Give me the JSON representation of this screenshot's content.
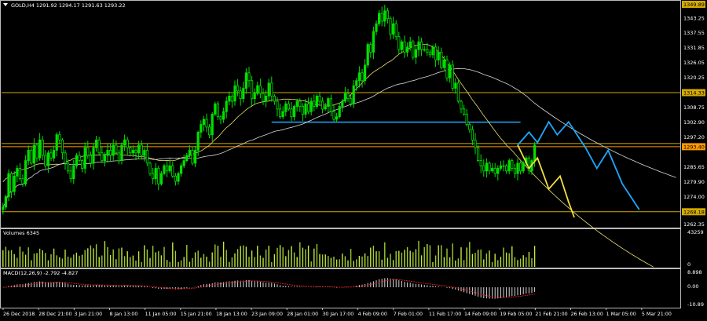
{
  "chart_data": {
    "type": "candlestick",
    "symbol_label": "GOLD,H4  1291.92 1294.17 1291.63 1293.22",
    "price_axis": {
      "ylim": [
        1262.35,
        1349.6
      ],
      "ticks": [
        "1349.89",
        "1343.25",
        "1337.55",
        "1331.85",
        "1326.05",
        "1320.25",
        "1314.33",
        "1308.75",
        "1302.90",
        "1297.20",
        "1293.40",
        "1285.65",
        "1279.90",
        "1274.00",
        "1268.18",
        "1262.35"
      ],
      "level_labels": [
        "1349.89",
        "1314.33",
        "1293.40",
        "1268.18"
      ]
    },
    "horizontal_levels": [
      {
        "value": 1314.33,
        "color": "#d4aa00"
      },
      {
        "value": 1294.6,
        "color": "#d4aa00"
      },
      {
        "value": 1293.4,
        "color": "#ff9900"
      },
      {
        "value": 1268.18,
        "color": "#d4aa00"
      }
    ],
    "resistance_line": {
      "value": 1302.9,
      "from_index": 95,
      "to_index": 183,
      "color": "#1ea8ff"
    },
    "moving_averages": [
      {
        "color": "#e8e070",
        "period": "fast"
      },
      {
        "color": "#d8d8d8",
        "period": "slow"
      }
    ],
    "closes": [
      1270,
      1274,
      1283,
      1276,
      1282,
      1285,
      1281,
      1279,
      1288,
      1292,
      1287,
      1294,
      1289,
      1296,
      1290,
      1286,
      1291,
      1289,
      1292,
      1298,
      1296,
      1291,
      1287,
      1284,
      1281,
      1286,
      1290,
      1288,
      1285,
      1293,
      1290,
      1287,
      1293,
      1296,
      1291,
      1288,
      1290,
      1292,
      1290,
      1294,
      1291,
      1288,
      1294,
      1296,
      1293,
      1291,
      1292,
      1291,
      1294,
      1290,
      1292,
      1287,
      1283,
      1281,
      1285,
      1279,
      1283,
      1286,
      1284,
      1286,
      1282,
      1280,
      1283,
      1286,
      1288,
      1290,
      1292,
      1287,
      1292,
      1299,
      1302,
      1304,
      1301,
      1298,
      1306,
      1310,
      1305,
      1304,
      1307,
      1311,
      1313,
      1311,
      1317,
      1315,
      1312,
      1316,
      1322,
      1319,
      1312,
      1314,
      1317,
      1314,
      1311,
      1313,
      1318,
      1313,
      1311,
      1308,
      1305,
      1307,
      1310,
      1308,
      1305,
      1309,
      1311,
      1309,
      1306,
      1310,
      1307,
      1311,
      1309,
      1313,
      1311,
      1308,
      1309,
      1312,
      1307,
      1304,
      1305,
      1309,
      1311,
      1314,
      1312,
      1310,
      1317,
      1319,
      1322,
      1319,
      1325,
      1333,
      1330,
      1338,
      1341,
      1345,
      1342,
      1346,
      1343,
      1337,
      1341,
      1336,
      1331,
      1334,
      1330,
      1332,
      1334,
      1328,
      1331,
      1334,
      1331,
      1331,
      1330,
      1329,
      1332,
      1327,
      1330,
      1324,
      1327,
      1320,
      1325,
      1316,
      1318,
      1311,
      1308,
      1306,
      1302,
      1300,
      1296,
      1293,
      1288,
      1286,
      1284,
      1287,
      1284,
      1285,
      1283,
      1285,
      1286,
      1286,
      1284,
      1288,
      1285,
      1283,
      1287,
      1284,
      1287,
      1289,
      1284,
      1288,
      1294
    ],
    "forecast_paths": [
      {
        "color": "#1ea8ff",
        "points": [
          [
            182,
            1294
          ],
          [
            186,
            1299
          ],
          [
            189,
            1295
          ],
          [
            193,
            1303
          ],
          [
            196,
            1298
          ],
          [
            200,
            1303
          ],
          [
            206,
            1293
          ],
          [
            210,
            1285
          ],
          [
            214,
            1292
          ],
          [
            219,
            1279
          ],
          [
            225,
            1269
          ]
        ]
      },
      {
        "color": "#f0e040",
        "points": [
          [
            182,
            1294
          ],
          [
            186,
            1285
          ],
          [
            189,
            1289
          ],
          [
            193,
            1277
          ],
          [
            197,
            1282
          ],
          [
            200,
            1272
          ],
          [
            202,
            1266
          ]
        ]
      }
    ],
    "volumes_panel": {
      "title": "Volumes 6345",
      "ticks": [
        "43259",
        "0"
      ]
    },
    "macd_panel": {
      "title": "MACD(12,26,9) -2.792 -4.827",
      "ticks": [
        "8.898",
        "0.00",
        "-10.89"
      ],
      "signal_color": "#d02020"
    },
    "x_labels": [
      "26 Dec 2018",
      "28 Dec 21:00",
      "3 Jan 21:00",
      "8 Jan 13:00",
      "11 Jan 05:00",
      "15 Jan 21:00",
      "18 Jan 13:00",
      "23 Jan 09:00",
      "28 Jan 01:00",
      "30 Jan 17:00",
      "4 Feb 09:00",
      "7 Feb 01:00",
      "11 Feb 17:00",
      "14 Feb 09:00",
      "19 Feb 05:00",
      "21 Feb 21:00",
      "26 Feb 13:00",
      "1 Mar 05:00",
      "5 Mar 21:00"
    ]
  }
}
